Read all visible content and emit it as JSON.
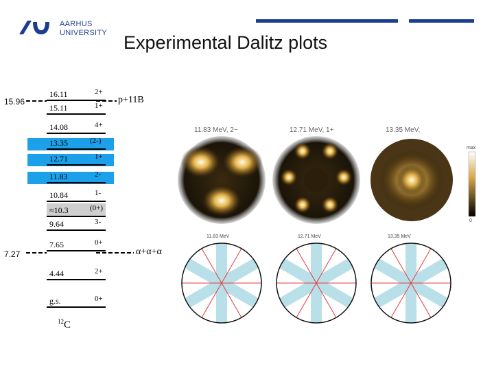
{
  "header": {
    "university_line1": "AARHUS",
    "university_line2": "UNIVERSITY",
    "title": "Experimental Dalitz plots"
  },
  "level_scheme": {
    "nucleus_label": "12C",
    "side_labels": [
      "15.96",
      "7.27"
    ],
    "thresholds": {
      "upper": "p+11B",
      "lower": "α+α+α"
    },
    "levels": [
      {
        "energy": "16.11",
        "jpi": "2+"
      },
      {
        "energy": "15.11",
        "jpi": "1+"
      },
      {
        "energy": "14.08",
        "jpi": "4+"
      },
      {
        "energy": "13.35",
        "jpi": "(2-)"
      },
      {
        "energy": "12.71",
        "jpi": "1+"
      },
      {
        "energy": "11.83",
        "jpi": "2-"
      },
      {
        "energy": "10.84",
        "jpi": "1-"
      },
      {
        "energy": "≈10.3",
        "jpi": "(0+)"
      },
      {
        "energy": "9.64",
        "jpi": "3-"
      },
      {
        "energy": "7.65",
        "jpi": "0+"
      },
      {
        "energy": "4.44",
        "jpi": "2+"
      },
      {
        "energy": "g.s.",
        "jpi": "0+"
      }
    ]
  },
  "dalitz": {
    "top_titles": [
      "11.83 MeV, 2−",
      "12.71 MeV, 1+",
      "13.35 MeV,"
    ],
    "bottom_titles": [
      "11.83 MeV",
      "12.71 MeV",
      "13.35 MeV"
    ],
    "colorbar_top": "max",
    "colorbar_bottom": "0",
    "colors": {
      "band": "#b9dfe8",
      "lines": "#e23b3b"
    }
  }
}
